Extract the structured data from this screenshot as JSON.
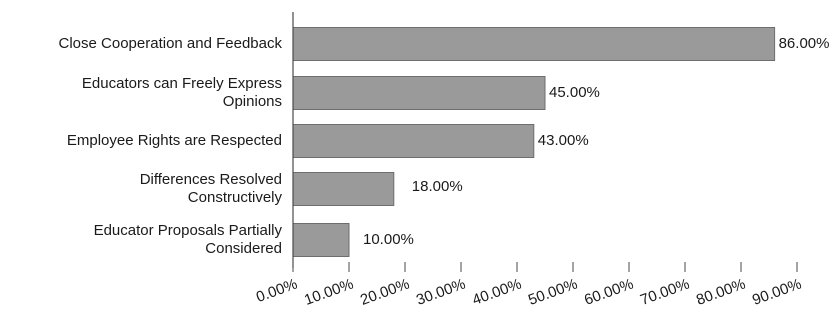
{
  "chart_data": {
    "type": "bar",
    "orientation": "horizontal",
    "categories": [
      [
        "Close Cooperation and Feedback"
      ],
      [
        "Educators can Freely Express",
        "Opinions"
      ],
      [
        "Employee Rights are Respected"
      ],
      [
        "Differences Resolved",
        "Constructively"
      ],
      [
        "Educator Proposals Partially",
        "Considered"
      ]
    ],
    "values": [
      86,
      45,
      43,
      18,
      10
    ],
    "value_labels": [
      "86.00%",
      "45.00%",
      "43.00%",
      "18.00%",
      "10.00%"
    ],
    "xlim": [
      0,
      90
    ],
    "x_ticks": [
      0,
      10,
      20,
      30,
      40,
      50,
      60,
      70,
      80,
      90
    ],
    "x_tick_labels": [
      "0.00%",
      "10.00%",
      "20.00%",
      "30.00%",
      "40.00%",
      "50.00%",
      "60.00%",
      "70.00%",
      "80.00%",
      "90.00%"
    ],
    "grid": false,
    "legend": "none",
    "bar_color": "#9a9a9a",
    "bar_edge_color": "#6e6e6e",
    "title": "",
    "xlabel": "",
    "ylabel": ""
  }
}
